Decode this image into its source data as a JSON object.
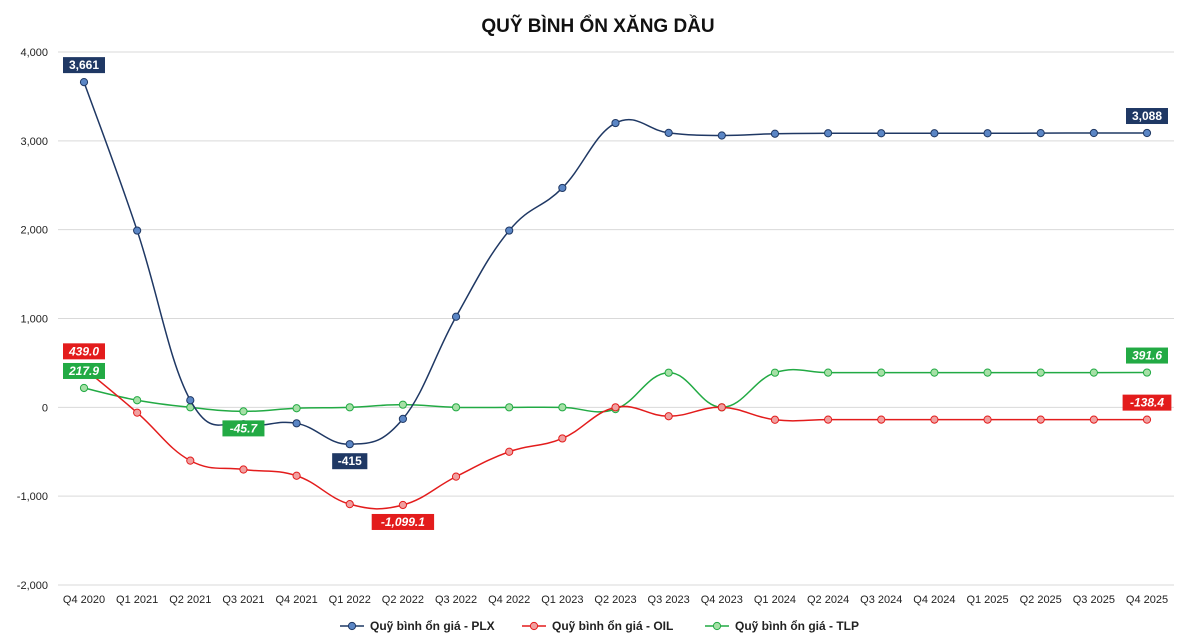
{
  "chart_data": {
    "type": "line",
    "title": "QUỸ BÌNH ỔN XĂNG DẦU",
    "xlabel": "",
    "ylabel": "",
    "ylim": [
      -2000,
      4000
    ],
    "yticks": [
      -2000,
      -1000,
      0,
      1000,
      2000,
      3000,
      4000
    ],
    "ytick_labels": [
      "-2,000",
      "-1,000",
      "0",
      "1,000",
      "2,000",
      "3,000",
      "4,000"
    ],
    "grid": true,
    "legend_position": "bottom",
    "categories": [
      "Q4 2020",
      "Q1 2021",
      "Q2 2021",
      "Q3 2021",
      "Q4 2021",
      "Q1 2022",
      "Q2 2022",
      "Q3 2022",
      "Q4 2022",
      "Q1 2023",
      "Q2 2023",
      "Q3 2023",
      "Q4 2023",
      "Q1 2024",
      "Q2 2024",
      "Q3 2024",
      "Q4 2024",
      "Q1 2025",
      "Q2 2025",
      "Q3 2025",
      "Q4 2025"
    ],
    "series": [
      {
        "name": "Quỹ bình ổn giá - PLX",
        "color": "#1f3864",
        "marker_fill": "#5b86c5",
        "values": [
          3661,
          1990,
          80,
          -190,
          -180,
          -415,
          -130,
          1020,
          1990,
          2470,
          3200,
          3090,
          3060,
          3080,
          3085,
          3085,
          3085,
          3085,
          3087,
          3088,
          3088
        ],
        "labels": [
          {
            "index": 0,
            "text": "3,661",
            "italic": false,
            "pos": "above"
          },
          {
            "index": 5,
            "text": "-415",
            "italic": false,
            "pos": "below"
          },
          {
            "index": 20,
            "text": "3,088",
            "italic": false,
            "pos": "above"
          }
        ]
      },
      {
        "name": "Quỹ bình ổn giá - OIL",
        "color": "#e31c1c",
        "marker_fill": "#f0a0a0",
        "values": [
          439.0,
          -60,
          -600,
          -700,
          -770,
          -1090,
          -1099.1,
          -780,
          -500,
          -350,
          0,
          -100,
          0,
          -140,
          -138,
          -138,
          -138,
          -138,
          -138,
          -138,
          -138.4
        ],
        "labels": [
          {
            "index": 0,
            "text": "439.0",
            "italic": true,
            "pos": "above"
          },
          {
            "index": 6,
            "text": "-1,099.1",
            "italic": true,
            "pos": "below"
          },
          {
            "index": 20,
            "text": "-138.4",
            "italic": true,
            "pos": "above"
          }
        ]
      },
      {
        "name": "Quỹ bình ổn giá - TLP",
        "color": "#22aa44",
        "marker_fill": "#a6e0a6",
        "values": [
          217.9,
          80,
          0,
          -45.7,
          -10,
          0,
          30,
          0,
          0,
          0,
          -20,
          390,
          0,
          390,
          391,
          391,
          391,
          391,
          391,
          391,
          391.6
        ],
        "labels": [
          {
            "index": 0,
            "text": "217.9",
            "italic": true,
            "pos": "above"
          },
          {
            "index": 3,
            "text": "-45.7",
            "italic": true,
            "pos": "below"
          },
          {
            "index": 20,
            "text": "391.6",
            "italic": true,
            "pos": "above"
          }
        ]
      }
    ]
  }
}
